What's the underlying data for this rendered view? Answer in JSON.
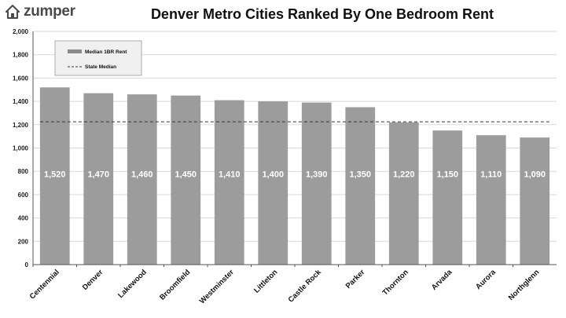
{
  "brand": {
    "name": "zumper",
    "icon": "house-icon"
  },
  "colors": {
    "bar": "#9c9c9c",
    "grid": "#d9d9d9",
    "axis": "#555555",
    "legend_bg": "#f0f0f0"
  },
  "chart_data": {
    "type": "bar",
    "title": "Denver Metro Cities Ranked By One Bedroom Rent",
    "categories": [
      "Centennial",
      "Denver",
      "Lakewood",
      "Broomfield",
      "Westminster",
      "Littleton",
      "Castle Rock",
      "Parker",
      "Thornton",
      "Arvada",
      "Aurora",
      "Northglenn"
    ],
    "series": [
      {
        "name": "Median 1BR Rent",
        "values": [
          1520,
          1470,
          1460,
          1450,
          1410,
          1400,
          1390,
          1350,
          1220,
          1150,
          1110,
          1090
        ]
      }
    ],
    "value_labels": [
      "1,520",
      "1,470",
      "1,460",
      "1,450",
      "1,410",
      "1,400",
      "1,390",
      "1,350",
      "1,220",
      "1,150",
      "1,110",
      "1,090"
    ],
    "reference_line": {
      "name": "State Median",
      "value": 1225,
      "style": "dashed"
    },
    "yticks": [
      0,
      200,
      400,
      600,
      800,
      1000,
      1200,
      1400,
      1600,
      1800,
      2000
    ],
    "ytick_labels": [
      "0",
      "200",
      "400",
      "600",
      "800",
      "1,000",
      "1,200",
      "1,400",
      "1,600",
      "1,800",
      "2,000"
    ],
    "ylim": [
      0,
      2000
    ],
    "xlabel": "",
    "ylabel": "",
    "grid": true,
    "legend": {
      "position": "top-left",
      "entries": [
        "Median 1BR Rent",
        "State Median"
      ]
    }
  }
}
